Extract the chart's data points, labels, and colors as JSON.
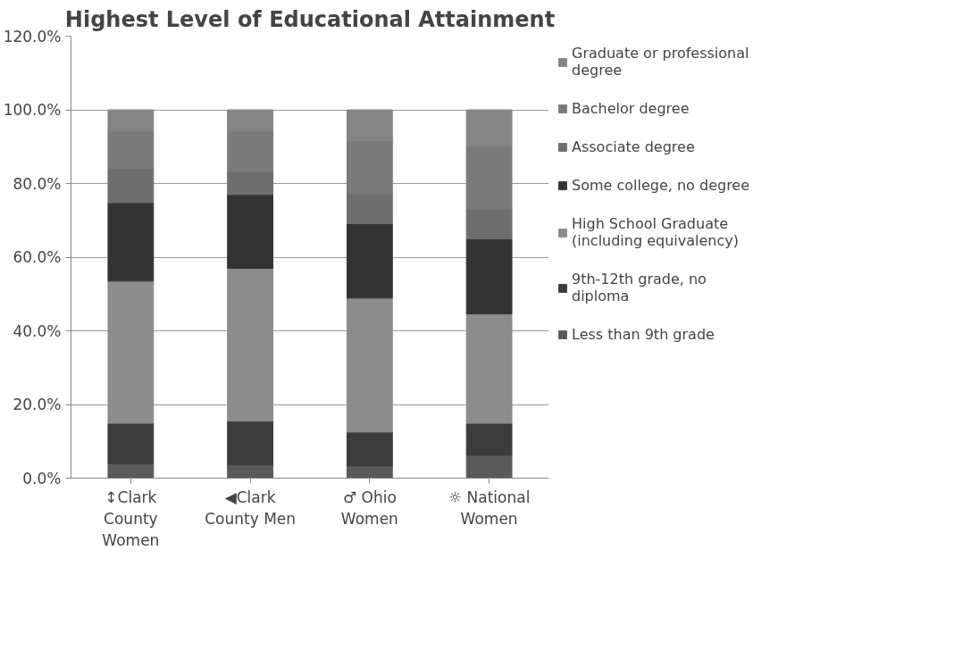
{
  "chart_data": {
    "type": "bar",
    "title": "Highest Level of Educational Attainment",
    "categories": [
      "↕Clark County Women",
      "◀Clark County Men",
      "♂ Ohio Women",
      "☼ National Women"
    ],
    "stacked": true,
    "series": [
      {
        "name": "Less than 9th grade",
        "color": "#5a5a5a",
        "values": [
          3.9,
          3.6,
          3.3,
          6.2
        ]
      },
      {
        "name": "9th-12th grade, no diploma",
        "color": "#3c3c3c",
        "values": [
          11.0,
          11.9,
          9.2,
          8.7
        ]
      },
      {
        "name": "High School Graduate (including equivalency)",
        "color": "#8c8c8c",
        "values": [
          38.6,
          41.5,
          36.4,
          29.7
        ]
      },
      {
        "name": "Some college, no degree",
        "color": "#333333",
        "values": [
          21.3,
          20.0,
          20.2,
          20.4
        ]
      },
      {
        "name": "Associate degree",
        "color": "#6e6e6e",
        "values": [
          9.3,
          6.3,
          8.1,
          8.1
        ]
      },
      {
        "name": "Bachelor degree",
        "color": "#7a7a7a",
        "values": [
          10.1,
          10.9,
          14.5,
          17.0
        ]
      },
      {
        "name": "Graduate or professional degree",
        "color": "#858585",
        "values": [
          5.8,
          5.8,
          8.3,
          9.9
        ]
      }
    ],
    "ylim": [
      0,
      120
    ],
    "yticks": [
      {
        "value": 0,
        "label": "0.0%"
      },
      {
        "value": 20,
        "label": "20.0%"
      },
      {
        "value": 40,
        "label": "40.0%"
      },
      {
        "value": 60,
        "label": "60.0%"
      },
      {
        "value": 80,
        "label": "80.0%"
      },
      {
        "value": 100,
        "label": "100.0%"
      },
      {
        "value": 120,
        "label": "120.0%"
      }
    ],
    "grid": "y",
    "legend": "right"
  }
}
